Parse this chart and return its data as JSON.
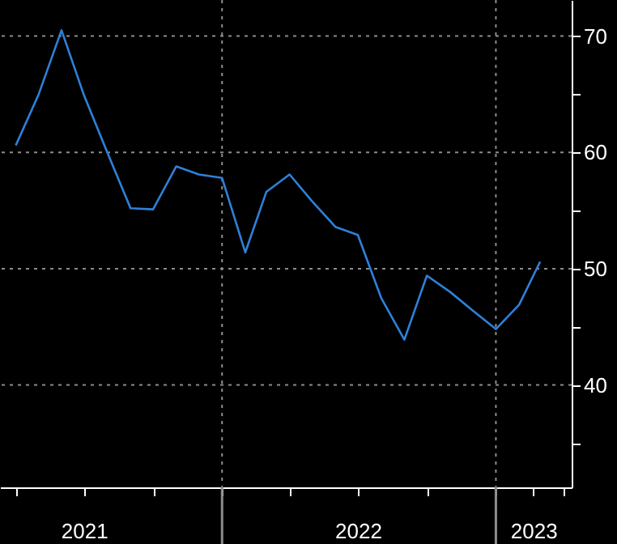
{
  "chart_data": {
    "type": "line",
    "x": [
      "2021-04",
      "2021-05",
      "2021-06",
      "2021-07",
      "2021-08",
      "2021-09",
      "2021-10",
      "2021-11",
      "2021-12",
      "2022-01",
      "2022-02",
      "2022-03",
      "2022-04",
      "2022-05",
      "2022-06",
      "2022-07",
      "2022-08",
      "2022-09",
      "2022-10",
      "2022-11",
      "2022-12",
      "2023-01",
      "2023-02",
      "2023-03"
    ],
    "series": [
      {
        "color": "#2f80d8",
        "values": [
          60.6,
          64.9,
          70.5,
          64.9,
          60.0,
          55.2,
          55.1,
          58.8,
          58.1,
          57.8,
          51.4,
          56.6,
          58.1,
          55.8,
          53.6,
          52.9,
          47.5,
          43.9,
          49.4,
          48.0,
          46.4,
          44.8,
          46.9,
          50.6
        ]
      }
    ],
    "xlim": [
      "2021-03-11",
      "2023-04-12"
    ],
    "xticks": [
      {
        "value": "2021-04-01",
        "label": null
      },
      {
        "value": "2021-07-01",
        "label": "2021"
      },
      {
        "value": "2021-10-01",
        "label": null
      },
      {
        "value": "2022-01-01",
        "label": null
      },
      {
        "value": "2022-04-01",
        "label": null
      },
      {
        "value": "2022-07-01",
        "label": "2022"
      },
      {
        "value": "2022-10-01",
        "label": null
      },
      {
        "value": "2023-01-01",
        "label": null
      },
      {
        "value": "2023-02-20",
        "label": "2023"
      },
      {
        "value": "2023-04-01",
        "label": null
      }
    ],
    "ylim": [
      31.2,
      73.1
    ],
    "yticks": [
      {
        "value": 35,
        "label": null
      },
      40,
      {
        "value": 45,
        "label": null
      },
      50,
      {
        "value": 55,
        "label": null
      },
      60,
      {
        "value": 65,
        "label": null
      },
      70
    ],
    "grid": "y",
    "ref_lines": [
      {
        "axis": "x",
        "value": "2022-01-01",
        "line_style": "dotted",
        "color": "#8c8c8c"
      },
      {
        "axis": "x",
        "value": "2023-01-01",
        "line_style": "dotted",
        "color": "#8c8c8c"
      }
    ],
    "line_style": "solid",
    "marker": "none"
  }
}
